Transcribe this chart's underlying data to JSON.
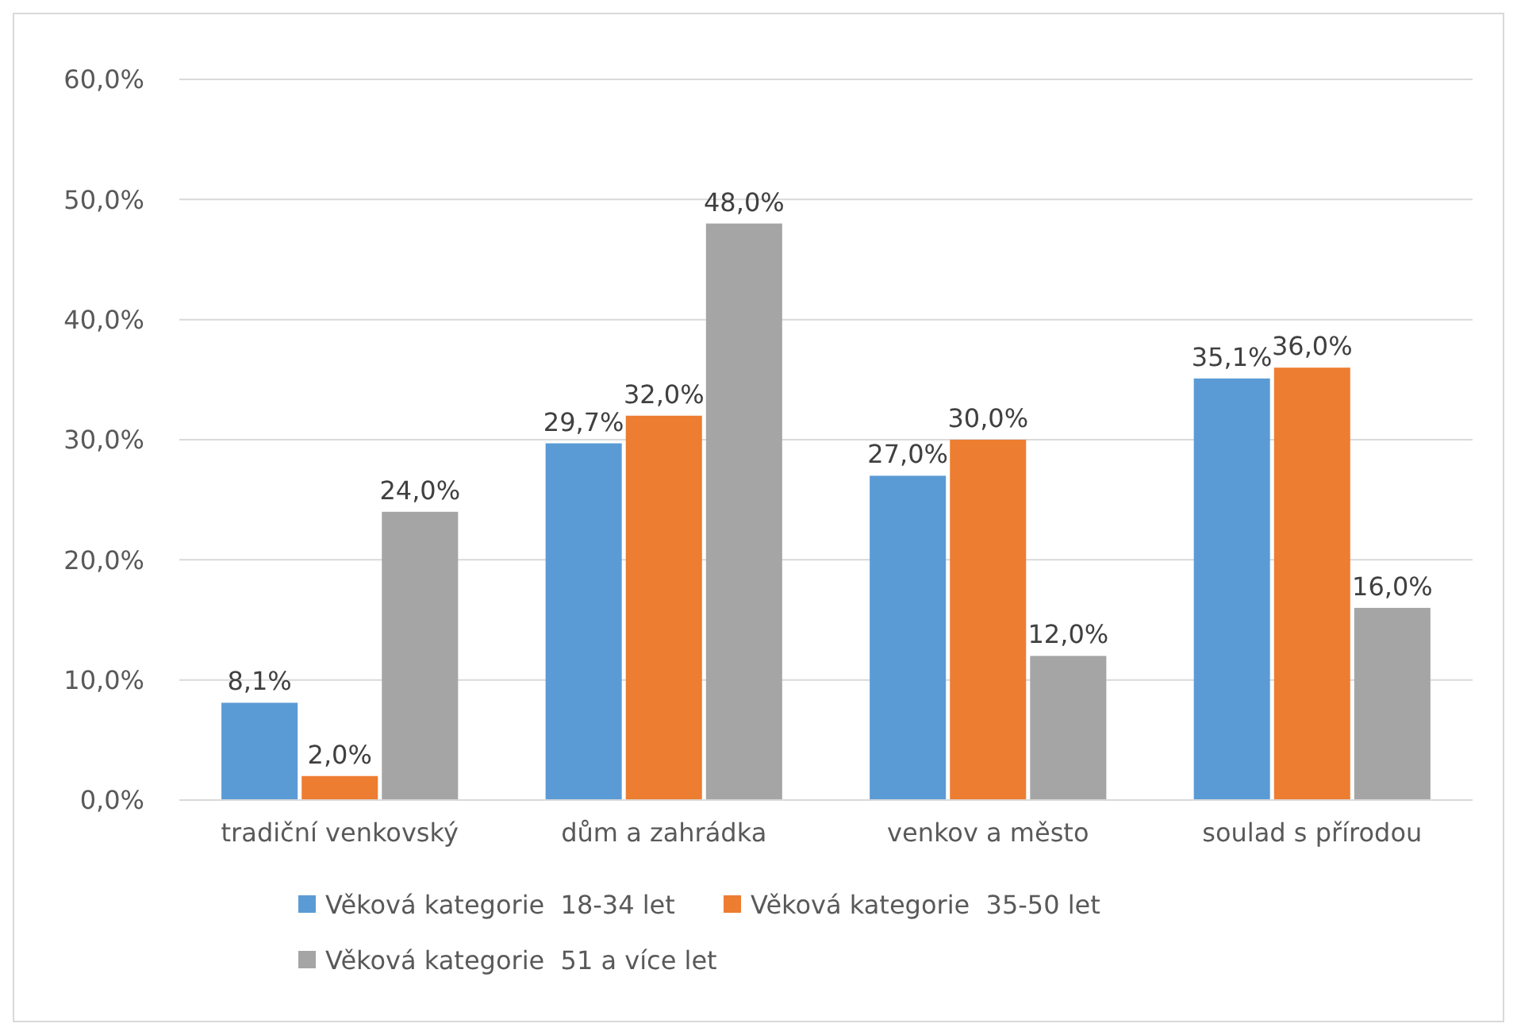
{
  "chart_data": {
    "type": "bar",
    "categories": [
      "tradiční venkovský",
      "dům a zahrádka",
      "venkov a město",
      "soulad s přírodou"
    ],
    "series": [
      {
        "name": "Věková kategorie  18-34 let",
        "color": "#5b9bd5",
        "values": [
          8.1,
          29.7,
          27.0,
          35.1
        ],
        "value_labels": [
          "8,1%",
          "29,7%",
          "27,0%",
          "35,1%"
        ]
      },
      {
        "name": "Věková kategorie  35-50 let",
        "color": "#ed7d31",
        "values": [
          2.0,
          32.0,
          30.0,
          36.0
        ],
        "value_labels": [
          "2,0%",
          "32,0%",
          "30,0%",
          "36,0%"
        ]
      },
      {
        "name": "Věková kategorie  51 a více let",
        "color": "#a5a5a5",
        "values": [
          24.0,
          48.0,
          12.0,
          16.0
        ],
        "value_labels": [
          "24,0%",
          "48,0%",
          "12,0%",
          "16,0%"
        ]
      }
    ],
    "ylim": [
      0,
      60
    ],
    "yticks": [
      {
        "value": 0,
        "label": "0,0%"
      },
      {
        "value": 10,
        "label": "10,0%"
      },
      {
        "value": 20,
        "label": "20,0%"
      },
      {
        "value": 30,
        "label": "30,0%"
      },
      {
        "value": 40,
        "label": "40,0%"
      },
      {
        "value": 50,
        "label": "50,0%"
      },
      {
        "value": 60,
        "label": "60,0%"
      }
    ],
    "grid": "y",
    "legend": "bottom"
  }
}
